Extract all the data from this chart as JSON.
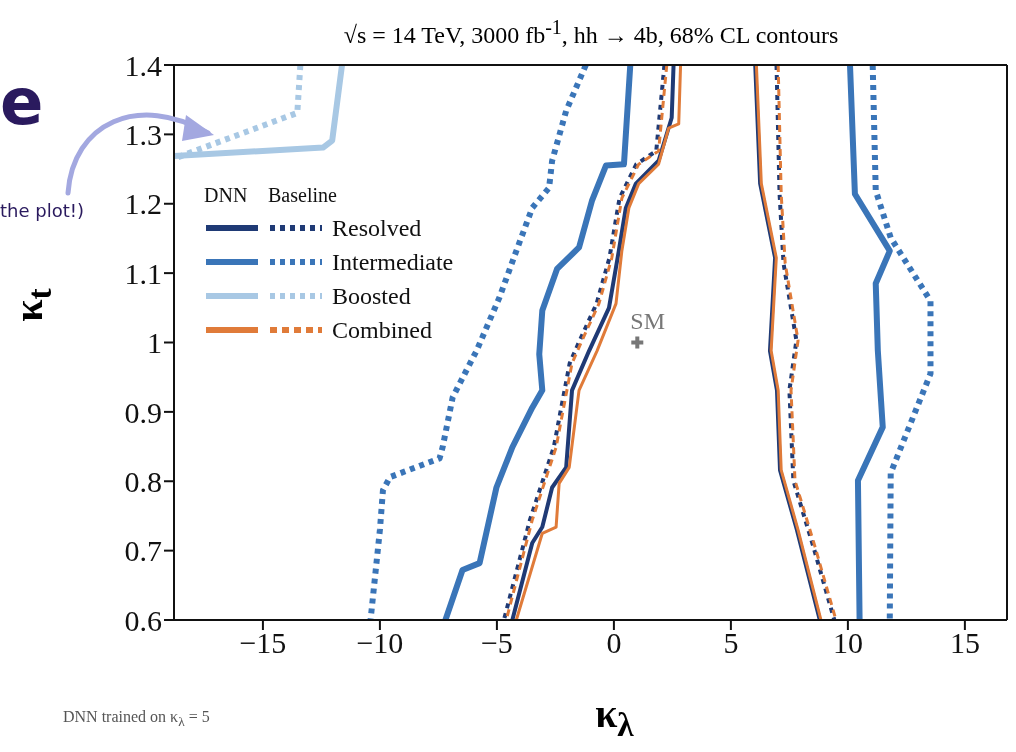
{
  "chart_data": {
    "type": "line",
    "title": "√s = 14 TeV, 3000 fb$^{-1}$, hh → 4b, 68% CL contours",
    "xlabel": "κ$_{λ}$",
    "ylabel": "κ$_{t}$",
    "xlim": [
      -18.8,
      16.8
    ],
    "xticks": [
      {
        "value": -15,
        "label": "−15"
      },
      {
        "value": -10,
        "label": "−10"
      },
      {
        "value": -5,
        "label": "−5"
      },
      0,
      5,
      10,
      15
    ],
    "ylim": [
      0.6,
      1.4
    ],
    "yticks": [
      0.6,
      0.7,
      0.8,
      0.9,
      1,
      1.1,
      1.2,
      1.3,
      1.4
    ],
    "grid": false,
    "legend": "top left",
    "marker": "none",
    "annotations": [
      "DNN",
      "Baseline",
      "DNN trained on κ$_{λ}$ = 5",
      "e",
      "the plot!)"
    ],
    "series": [
      {
        "name": "Resolved",
        "color": "#1f3a75",
        "line_style": "dotted",
        "x": [
          2.16,
          1.81,
          0.96,
          0.24,
          -0.19,
          -0.74,
          -1.46,
          -1.89,
          -2.57,
          -3.59,
          -4.7,
          null,
          6.95,
          7.08,
          7.25,
          7.8,
          7.5,
          7.67,
          8.53,
          9.42
        ],
        "values": [
          1.4,
          1.276,
          1.257,
          1.208,
          1.122,
          1.056,
          1.003,
          0.97,
          0.849,
          0.744,
          0.6,
          null,
          1.4,
          1.214,
          1.114,
          1.003,
          0.931,
          0.801,
          0.705,
          0.6
        ]
      },
      {
        "color": "#1f3a75",
        "line_style": "solid",
        "x": [
          2.55,
          2.47,
          1.91,
          0.94,
          0.51,
          0.21,
          -0.21,
          -1.06,
          -1.79,
          -2.04,
          -2.64,
          -3.06,
          -3.49,
          -4.34,
          null,
          6.04,
          6.25,
          6.89,
          6.67,
          6.97,
          7.1,
          7.82,
          8.8
        ],
        "values": [
          1.4,
          1.324,
          1.262,
          1.229,
          1.194,
          1.132,
          1.05,
          0.988,
          0.931,
          0.82,
          0.791,
          0.734,
          0.711,
          0.6,
          null,
          1.4,
          1.229,
          1.122,
          0.988,
          0.931,
          0.816,
          0.73,
          0.6
        ]
      },
      {
        "name": "Intermediate",
        "color": "#3a75b8",
        "line_style": "dotted",
        "x": [
          -1.2,
          -2.04,
          -2.64,
          -2.77,
          -3.49,
          -4.17,
          -4.89,
          -5.87,
          -6.3,
          -6.89,
          -7.32,
          -7.45,
          -9.57,
          -9.87,
          -10,
          -10.4,
          null,
          11.06,
          11.19,
          11.83,
          13.53,
          13.53,
          11.83,
          11.79
        ],
        "values": [
          1.4,
          1.334,
          1.262,
          1.223,
          1.194,
          1.132,
          1.065,
          0.988,
          0.96,
          0.921,
          0.849,
          0.833,
          0.806,
          0.787,
          0.73,
          0.6,
          null,
          1.4,
          1.219,
          1.151,
          1.06,
          0.955,
          0.812,
          0.6
        ]
      },
      {
        "color": "#3a75b8",
        "line_style": "solid",
        "x": [
          0.7,
          0.43,
          -0.34,
          -0.94,
          -1.49,
          -2.43,
          -3.06,
          -3.19,
          -3.06,
          -3.49,
          -4.34,
          -5.02,
          -5.74,
          -6.47,
          -7.2,
          null,
          10.09,
          10.3,
          11.79,
          11.19,
          11.28,
          11.49,
          10.43,
          10.5
        ],
        "values": [
          1.4,
          1.257,
          1.255,
          1.204,
          1.137,
          1.106,
          1.046,
          0.983,
          0.931,
          0.906,
          0.849,
          0.791,
          0.682,
          0.672,
          0.6,
          null,
          1.4,
          1.214,
          1.132,
          1.085,
          0.988,
          0.878,
          0.801,
          0.6
        ]
      },
      {
        "name": "Boosted",
        "color": "#a8c8e4",
        "line_style": "dotted",
        "x": [
          -13.4,
          -13.53,
          -18.8
        ],
        "values": [
          1.4,
          1.331,
          1.265
        ]
      },
      {
        "color": "#a8c8e4",
        "line_style": "solid",
        "x": [
          -11.62,
          -12.04,
          -12.43,
          -18.8
        ],
        "values": [
          1.4,
          1.291,
          1.281,
          1.269
        ]
      },
      {
        "name": "Combined",
        "color": "#e07b39",
        "line_style": "dashed",
        "x": [
          2.26,
          1.91,
          1.06,
          0.34,
          -0.09,
          -0.64,
          -1.36,
          -1.79,
          -2.47,
          -3.49,
          -4.6,
          null,
          7.02,
          7.15,
          7.32,
          7.87,
          7.57,
          7.74,
          8.6,
          9.49
        ],
        "values": [
          1.4,
          1.276,
          1.257,
          1.208,
          1.122,
          1.056,
          1.003,
          0.97,
          0.849,
          0.744,
          0.6,
          null,
          1.4,
          1.214,
          1.114,
          1.003,
          0.931,
          0.801,
          0.705,
          0.6
        ]
      },
      {
        "color": "#e07b39",
        "line_style": "solid",
        "x": [
          2.85,
          2.77,
          2.34,
          1.91,
          1.06,
          0.64,
          0.34,
          0.09,
          -0.72,
          -1.49,
          -1.91,
          -2.34,
          -2.47,
          -3.06,
          -4.17,
          null,
          6.09,
          6.3,
          6.94,
          6.72,
          7.02,
          7.15,
          7.87,
          8.85
        ],
        "values": [
          1.4,
          1.315,
          1.309,
          1.257,
          1.229,
          1.194,
          1.132,
          1.056,
          0.988,
          0.931,
          0.82,
          0.797,
          0.734,
          0.725,
          0.6,
          null,
          1.4,
          1.229,
          1.122,
          0.988,
          0.931,
          0.816,
          0.73,
          0.6
        ]
      },
      {
        "name": "SM",
        "type": "scatter",
        "marker": "cross",
        "color": "#777777",
        "x": [
          1
        ],
        "values": [
          1
        ]
      }
    ]
  }
}
